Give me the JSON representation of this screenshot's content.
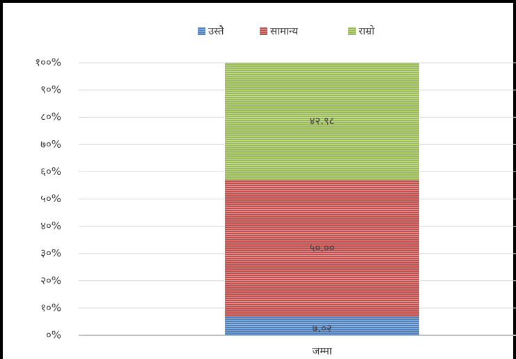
{
  "chart_data": {
    "type": "stacked_bar",
    "categories": [
      "जम्मा"
    ],
    "series": [
      {
        "name": "उस्तै",
        "color": "#4f81bd",
        "values": [
          7.02
        ],
        "value_labels": [
          "७.०२"
        ]
      },
      {
        "name": "सामान्य",
        "color": "#c0504d",
        "values": [
          50.0
        ],
        "value_labels": [
          "५०.००"
        ]
      },
      {
        "name": "राम्रो",
        "color": "#9bbb59",
        "values": [
          42.98
        ],
        "value_labels": [
          "४२.९८"
        ]
      }
    ],
    "ylim": [
      0,
      100
    ],
    "yticks": [
      {
        "value": 0,
        "label": "०%"
      },
      {
        "value": 10,
        "label": "१०%"
      },
      {
        "value": 20,
        "label": "२०%"
      },
      {
        "value": 30,
        "label": "३०%"
      },
      {
        "value": 40,
        "label": "४०%"
      },
      {
        "value": 50,
        "label": "५०%"
      },
      {
        "value": 60,
        "label": "६०%"
      },
      {
        "value": 70,
        "label": "७०%"
      },
      {
        "value": 80,
        "label": "८०%"
      },
      {
        "value": 90,
        "label": "९०%"
      },
      {
        "value": 100,
        "label": "१००%"
      }
    ],
    "grid": true,
    "legend": "top"
  }
}
